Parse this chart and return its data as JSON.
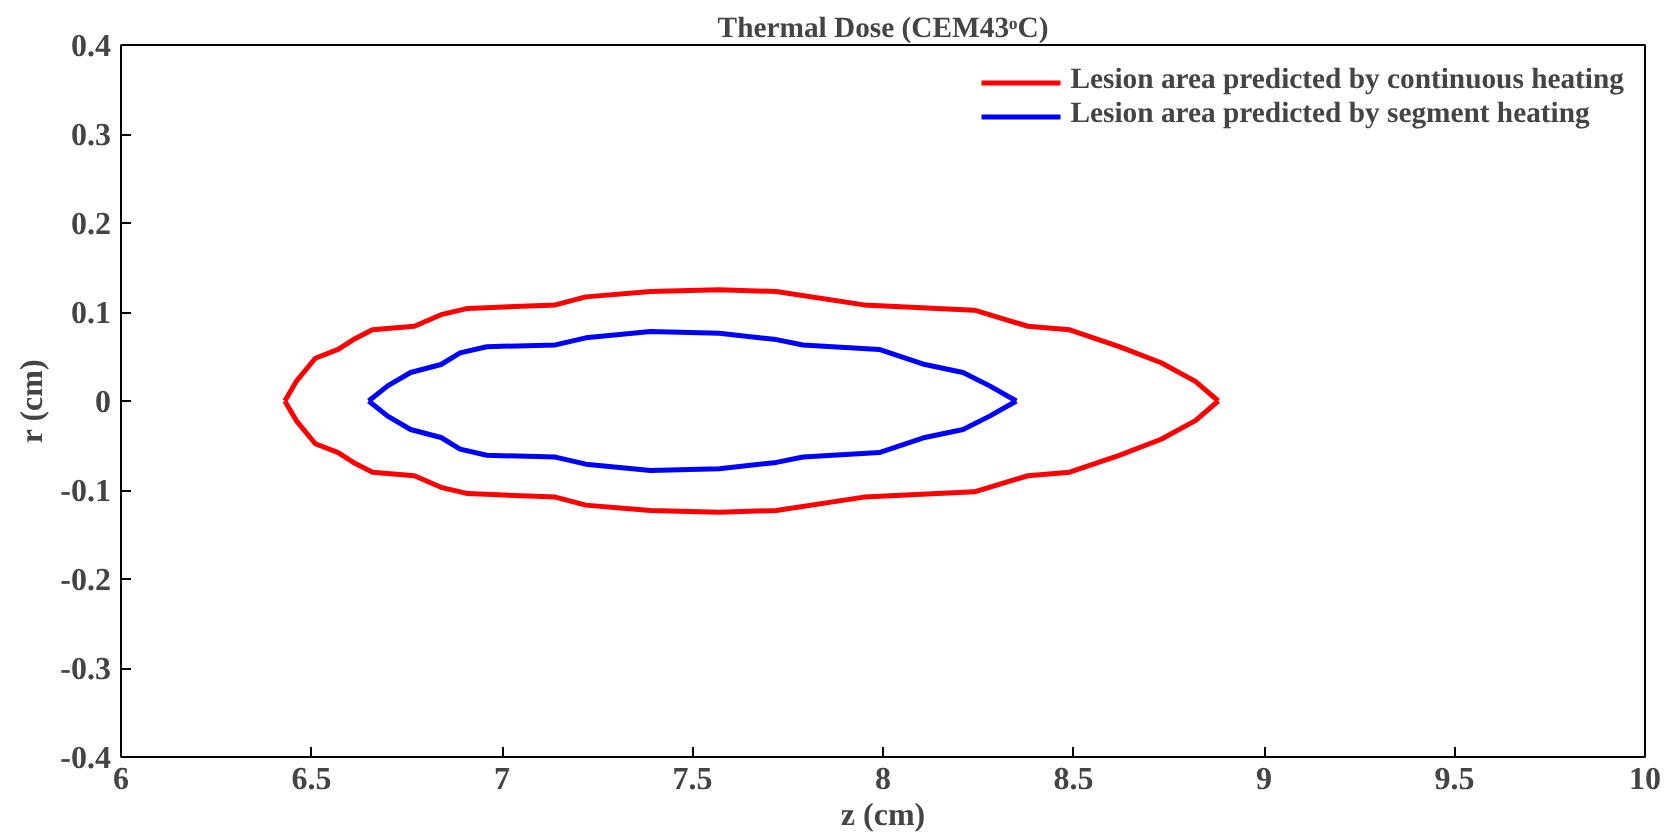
{
  "chart_data": {
    "type": "line",
    "title": "Thermal Dose (CEM43ᵒC)",
    "xlabel": "z (cm)",
    "ylabel": "r (cm)",
    "xlim": [
      6,
      10
    ],
    "ylim": [
      -0.4,
      0.4
    ],
    "xticks": [
      6,
      6.5,
      7,
      7.5,
      8,
      8.5,
      9,
      9.5,
      10
    ],
    "yticks": [
      -0.4,
      -0.3,
      -0.2,
      -0.1,
      0,
      0.1,
      0.2,
      0.3,
      0.4
    ],
    "grid": false,
    "legend": "top right",
    "marker": "none",
    "line_style": "solid",
    "series": [
      {
        "name": "Lesion area predicted by continuous heating",
        "color": "#ff0000",
        "x": [
          6.43,
          6.46,
          6.51,
          6.57,
          6.61,
          6.66,
          6.77,
          6.84,
          6.91,
          7.14,
          7.22,
          7.39,
          7.57,
          7.72,
          7.95,
          8.24,
          8.38,
          8.49,
          8.62,
          8.73,
          8.82,
          8.88,
          null,
          6.43,
          6.46,
          6.51,
          6.57,
          6.61,
          6.66,
          6.77,
          6.84,
          6.91,
          7.14,
          7.22,
          7.39,
          7.57,
          7.72,
          7.95,
          8.24,
          8.38,
          8.49,
          8.62,
          8.73,
          8.82,
          8.88
        ],
        "values": [
          0,
          0.022,
          0.048,
          0.058,
          0.069,
          0.08,
          0.084,
          0.097,
          0.104,
          0.108,
          0.117,
          0.123,
          0.125,
          0.123,
          0.108,
          0.102,
          0.084,
          0.08,
          0.061,
          0.043,
          0.022,
          0,
          null,
          0,
          -0.022,
          -0.048,
          -0.058,
          -0.069,
          -0.08,
          -0.084,
          -0.097,
          -0.104,
          -0.108,
          -0.117,
          -0.123,
          -0.125,
          -0.123,
          -0.108,
          -0.102,
          -0.084,
          -0.08,
          -0.061,
          -0.043,
          -0.022,
          0
        ]
      },
      {
        "name": "Lesion area predicted by segment heating",
        "color": "#0000ff",
        "x": [
          6.65,
          6.7,
          6.76,
          6.84,
          6.89,
          6.96,
          7.14,
          7.22,
          7.39,
          7.57,
          7.72,
          7.79,
          7.99,
          8.11,
          8.21,
          8.28,
          8.35,
          null,
          6.65,
          6.7,
          6.76,
          6.84,
          6.89,
          6.96,
          7.14,
          7.22,
          7.39,
          7.57,
          7.72,
          7.79,
          7.99,
          8.11,
          8.21,
          8.28,
          8.35
        ],
        "values": [
          0,
          0.017,
          0.032,
          0.041,
          0.054,
          0.061,
          0.063,
          0.071,
          0.078,
          0.076,
          0.069,
          0.063,
          0.058,
          0.041,
          0.032,
          0.017,
          0,
          null,
          0,
          -0.017,
          -0.032,
          -0.041,
          -0.054,
          -0.061,
          -0.063,
          -0.071,
          -0.078,
          -0.076,
          -0.069,
          -0.063,
          -0.058,
          -0.041,
          -0.032,
          -0.017,
          0
        ]
      }
    ]
  }
}
